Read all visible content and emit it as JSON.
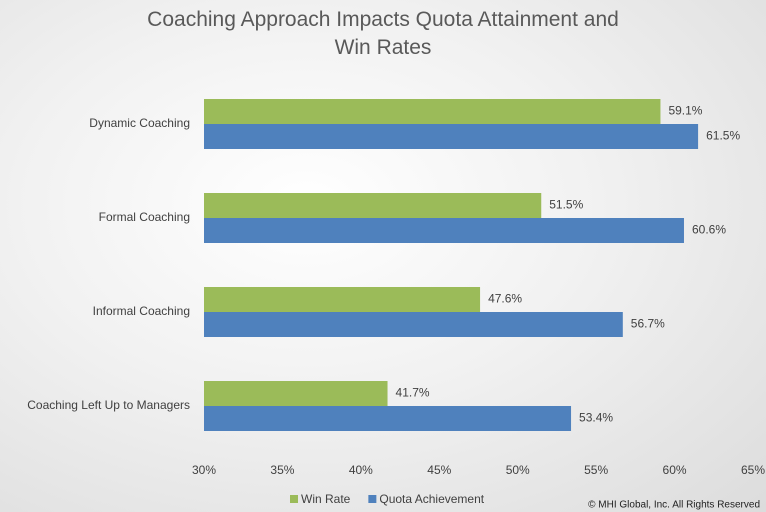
{
  "chart_data": {
    "type": "bar",
    "orientation": "horizontal",
    "title": "Coaching Approach Impacts Quota Attainment and Win Rates",
    "categories": [
      "Dynamic Coaching",
      "Formal Coaching",
      "Informal Coaching",
      "Coaching Left Up to Managers"
    ],
    "series": [
      {
        "name": "Win Rate",
        "color": "#9bbb59",
        "values": [
          59.1,
          51.5,
          47.6,
          41.7
        ],
        "value_labels": [
          "59.1%",
          "51.5%",
          "47.6%",
          "41.7%"
        ]
      },
      {
        "name": "Quota Achievement",
        "color": "#4f81bd",
        "values": [
          61.5,
          60.6,
          56.7,
          53.4
        ],
        "value_labels": [
          "61.5%",
          "60.6%",
          "56.7%",
          "53.4%"
        ]
      }
    ],
    "xlim": [
      30,
      65
    ],
    "xticks": [
      {
        "value": 30,
        "label": "30%"
      },
      {
        "value": 35,
        "label": "35%"
      },
      {
        "value": 40,
        "label": "40%"
      },
      {
        "value": 45,
        "label": "45%"
      },
      {
        "value": 50,
        "label": "50%"
      },
      {
        "value": 55,
        "label": "55%"
      },
      {
        "value": 60,
        "label": "60%"
      },
      {
        "value": 65,
        "label": "65%"
      }
    ],
    "grid": false,
    "legend": "bottom",
    "footer": "© MHI Global, Inc. All Rights Reserved"
  }
}
